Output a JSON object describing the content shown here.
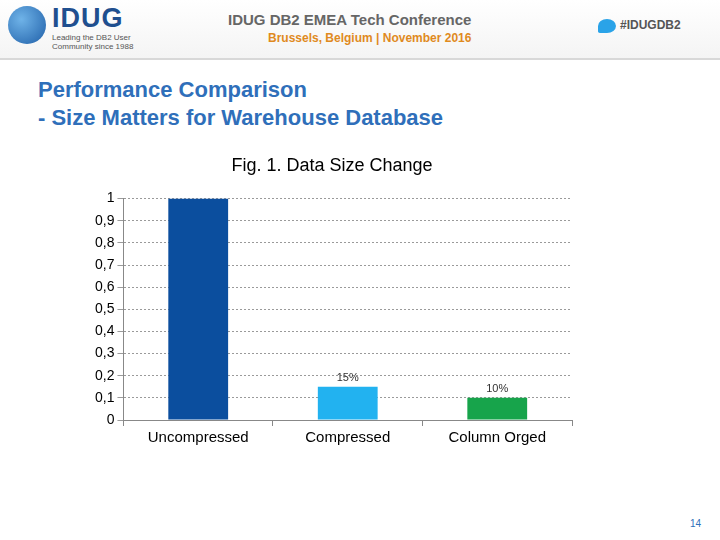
{
  "slide": {
    "logo": "IDUG",
    "logo_tagline": "Leading the DB2 User Community since 1988",
    "conference": "IDUG DB2 EMEA Tech Conference",
    "conference_place": "Brussels, Belgium | November 2016",
    "hashtag": "#IDUGDB2",
    "title_lines": [
      "Performance Comparison",
      "- Size Matters for Warehouse Database"
    ],
    "page_number": "14"
  },
  "chart_data": {
    "type": "bar",
    "title": "Fig. 1. Data Size Change",
    "categories": [
      "Uncompressed",
      "Compressed",
      "Column Orged"
    ],
    "values": [
      1,
      0.15,
      0.1
    ],
    "value_labels": [
      null,
      "15%",
      "10%"
    ],
    "data_labels": true,
    "colors": [
      "#0b4e9e",
      "#22b2f0",
      "#17a44b"
    ],
    "ylim": [
      0,
      1
    ],
    "yticks": [
      0,
      {
        "value": 0.1,
        "label": "0,1"
      },
      {
        "value": 0.2,
        "label": "0,2"
      },
      {
        "value": 0.3,
        "label": "0,3"
      },
      {
        "value": 0.4,
        "label": "0,4"
      },
      {
        "value": 0.5,
        "label": "0,5"
      },
      {
        "value": 0.6,
        "label": "0,6"
      },
      {
        "value": 0.7,
        "label": "0,7"
      },
      {
        "value": 0.8,
        "label": "0,8"
      },
      {
        "value": 0.9,
        "label": "0,9"
      },
      1
    ],
    "grid": true
  }
}
